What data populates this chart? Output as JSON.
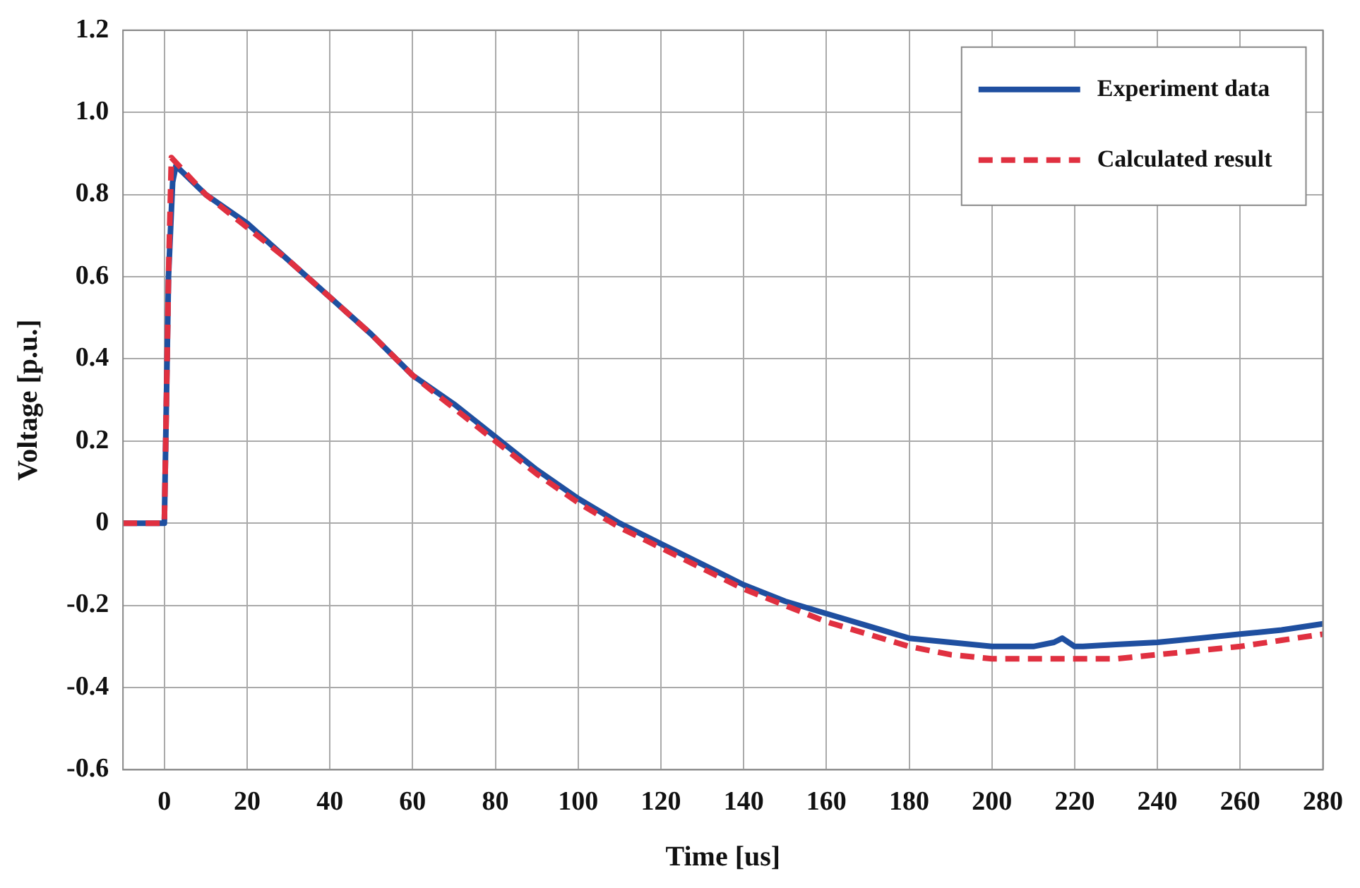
{
  "chart_data": {
    "type": "line",
    "xlabel": "Time [us]",
    "ylabel": "Voltage [p.u.]",
    "xlim": [
      -10,
      280
    ],
    "xticks": [
      0,
      20,
      40,
      60,
      80,
      100,
      120,
      140,
      160,
      180,
      200,
      220,
      240,
      260,
      280
    ],
    "ylim": [
      -0.6,
      1.2
    ],
    "yticks": [
      {
        "value": -0.6,
        "label": "-0.6"
      },
      {
        "value": -0.4,
        "label": "-0.4"
      },
      {
        "value": -0.2,
        "label": "-0.2"
      },
      0,
      {
        "value": 0.2,
        "label": "0.2"
      },
      {
        "value": 0.4,
        "label": "0.4"
      },
      {
        "value": 0.6,
        "label": "0.6"
      },
      {
        "value": 0.8,
        "label": "0.8"
      },
      {
        "value": 1,
        "label": "1.0"
      },
      {
        "value": 1.2,
        "label": "1.2"
      }
    ],
    "grid": true,
    "legend": "top right",
    "marker": "none",
    "series": [
      {
        "name": "Experiment data",
        "color": "#1f4fa0",
        "line_style": "solid",
        "x": [
          -10,
          -1,
          0,
          0.5,
          1,
          2,
          2.8,
          10,
          20,
          30,
          40,
          50,
          60,
          70,
          80,
          90,
          100,
          110,
          120,
          130,
          140,
          150,
          160,
          170,
          180,
          190,
          200,
          210,
          215,
          217,
          220,
          222,
          230,
          240,
          250,
          260,
          270,
          280
        ],
        "values": [
          0,
          0,
          0,
          0.3,
          0.6,
          0.83,
          0.87,
          0.8,
          0.73,
          0.64,
          0.55,
          0.46,
          0.36,
          0.29,
          0.21,
          0.13,
          0.06,
          -0.0,
          -0.05,
          -0.1,
          -0.15,
          -0.19,
          -0.22,
          -0.25,
          -0.28,
          -0.29,
          -0.3,
          -0.3,
          -0.29,
          -0.28,
          -0.3,
          -0.3,
          -0.295,
          -0.29,
          -0.28,
          -0.27,
          -0.26,
          -0.245
        ]
      },
      {
        "name": "Calculated result",
        "color": "#e03040",
        "line_style": "dashed",
        "x": [
          -10,
          -1,
          0,
          0.5,
          1,
          1.7,
          10,
          20,
          30,
          40,
          50,
          60,
          70,
          80,
          90,
          100,
          110,
          120,
          130,
          140,
          150,
          160,
          170,
          180,
          190,
          200,
          210,
          220,
          230,
          240,
          250,
          260,
          270,
          280
        ],
        "values": [
          0,
          0,
          0,
          0.3,
          0.6,
          0.89,
          0.8,
          0.72,
          0.64,
          0.55,
          0.46,
          0.36,
          0.28,
          0.2,
          0.12,
          0.05,
          -0.01,
          -0.06,
          -0.11,
          -0.16,
          -0.2,
          -0.24,
          -0.27,
          -0.3,
          -0.32,
          -0.33,
          -0.33,
          -0.33,
          -0.33,
          -0.32,
          -0.31,
          -0.3,
          -0.285,
          -0.27
        ]
      }
    ]
  }
}
